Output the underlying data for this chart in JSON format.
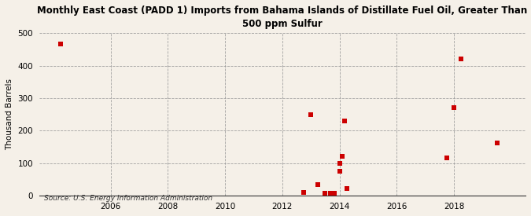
{
  "title": "Monthly East Coast (PADD 1) Imports from Bahama Islands of Distillate Fuel Oil, Greater Than\n500 ppm Sulfur",
  "ylabel": "Thousand Barrels",
  "source": "Source: U.S. Energy Information Administration",
  "background_color": "#f5f0e8",
  "plot_background_color": "#f5f0e8",
  "marker_color": "#cc0000",
  "marker_size": 4,
  "xlim": [
    2003.5,
    2020.5
  ],
  "ylim": [
    0,
    500
  ],
  "yticks": [
    0,
    100,
    200,
    300,
    400,
    500
  ],
  "xticks": [
    2006,
    2008,
    2010,
    2012,
    2014,
    2016,
    2018
  ],
  "data_points": [
    [
      2004.25,
      466
    ],
    [
      2012.75,
      10
    ],
    [
      2013.0,
      248
    ],
    [
      2013.25,
      35
    ],
    [
      2013.5,
      8
    ],
    [
      2013.67,
      8
    ],
    [
      2013.83,
      8
    ],
    [
      2014.0,
      100
    ],
    [
      2014.0,
      75
    ],
    [
      2014.08,
      120
    ],
    [
      2014.17,
      230
    ],
    [
      2014.25,
      22
    ],
    [
      2017.75,
      115
    ],
    [
      2018.0,
      270
    ],
    [
      2018.25,
      420
    ],
    [
      2019.5,
      163
    ]
  ]
}
